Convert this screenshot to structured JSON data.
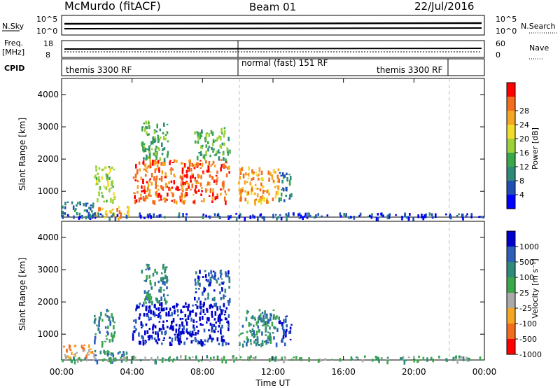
{
  "header": {
    "station": "McMurdo (fitACF)",
    "beam": "Beam 01",
    "date": "22/Jul/2016"
  },
  "aux_panels": {
    "nsky_label": "N.Sky",
    "nsky_ticks": [
      "10^5",
      "10^0"
    ],
    "nsearch_label": "N.Search",
    "nsearch_ticks": [
      "10^5",
      "10^0"
    ],
    "freq_label_top": "Freq.",
    "freq_label_bottom": "[MHz]",
    "freq_ticks": [
      "18",
      "8"
    ],
    "nave_label": "Nave",
    "nave_ticks": [
      "60",
      "0"
    ],
    "cpid_label": "CPID",
    "cpid_segments": [
      "themis 3300 RF",
      "normal (fast) 151 RF",
      "themis 3300 RF"
    ]
  },
  "chart_data": [
    {
      "type": "heatmap",
      "name": "power",
      "ylabel": "Slant Range [km]",
      "yticks": [
        "1000",
        "2000",
        "3000",
        "4000"
      ],
      "ylim": [
        200,
        4500
      ],
      "xlim": [
        0,
        24
      ],
      "colorbar": {
        "label": "Power [dB]",
        "ticks": [
          "4",
          "8",
          "12",
          "16",
          "20",
          "24",
          "28"
        ],
        "colors": [
          "#0000ff",
          "#1f4fb4",
          "#2f8a7a",
          "#3aa84a",
          "#9cd13a",
          "#f2dc2a",
          "#f5a623",
          "#f36d1e",
          "#ff0000"
        ]
      },
      "regions": [
        {
          "t0": 0.0,
          "t1": 1.8,
          "r0": 300,
          "r1": 700,
          "level": 2
        },
        {
          "t0": 1.8,
          "t1": 3.0,
          "r0": 700,
          "r1": 1800,
          "level": 4
        },
        {
          "t0": 1.8,
          "t1": 3.8,
          "r0": 200,
          "r1": 550,
          "level": 6
        },
        {
          "t0": 4.0,
          "t1": 9.5,
          "r0": 700,
          "r1": 2000,
          "level": 7
        },
        {
          "t0": 4.5,
          "t1": 6.0,
          "r0": 2000,
          "r1": 3200,
          "level": 3
        },
        {
          "t0": 7.5,
          "t1": 9.5,
          "r0": 2000,
          "r1": 3000,
          "level": 3
        },
        {
          "t0": 10.0,
          "t1": 12.3,
          "r0": 700,
          "r1": 1800,
          "level": 6
        },
        {
          "t0": 12.3,
          "t1": 13.0,
          "r0": 700,
          "r1": 1600,
          "level": 2
        },
        {
          "t0": 0.0,
          "t1": 24.0,
          "r0": 200,
          "r1": 350,
          "level": 1
        }
      ]
    },
    {
      "type": "heatmap",
      "name": "velocity",
      "ylabel": "Slant Range [km]",
      "yticks": [
        "1000",
        "2000",
        "3000",
        "4000"
      ],
      "ylim": [
        200,
        4500
      ],
      "xlim": [
        0,
        24
      ],
      "xlabel": "Time UT",
      "xticks": [
        "00:00",
        "04:00",
        "08:00",
        "12:00",
        "16:00",
        "20:00",
        "00:00"
      ],
      "colorbar": {
        "label": "Velocity [m s⁻¹]",
        "ticks": [
          "1000",
          "500",
          "100",
          "25",
          "-25",
          "-100",
          "-500",
          "-1000"
        ],
        "colors": [
          "#0000cd",
          "#2c5fb8",
          "#2f8a7a",
          "#3aa84a",
          "#aaaaaa",
          "#f5a623",
          "#f36d1e",
          "#ff0000"
        ]
      },
      "regions": [
        {
          "t0": 0.0,
          "t1": 1.8,
          "r0": 300,
          "r1": 700,
          "level": 5
        },
        {
          "t0": 1.8,
          "t1": 3.0,
          "r0": 700,
          "r1": 1800,
          "level": 2
        },
        {
          "t0": 1.8,
          "t1": 3.8,
          "r0": 200,
          "r1": 550,
          "level": 2
        },
        {
          "t0": 4.0,
          "t1": 9.5,
          "r0": 700,
          "r1": 2000,
          "level": 0
        },
        {
          "t0": 4.5,
          "t1": 6.0,
          "r0": 2000,
          "r1": 3200,
          "level": 2
        },
        {
          "t0": 7.5,
          "t1": 9.5,
          "r0": 2000,
          "r1": 3000,
          "level": 1
        },
        {
          "t0": 10.0,
          "t1": 12.3,
          "r0": 700,
          "r1": 1800,
          "level": 2
        },
        {
          "t0": 12.3,
          "t1": 13.0,
          "r0": 700,
          "r1": 1600,
          "level": 0
        },
        {
          "t0": 0.0,
          "t1": 24.0,
          "r0": 200,
          "r1": 350,
          "level": 3
        }
      ]
    }
  ]
}
